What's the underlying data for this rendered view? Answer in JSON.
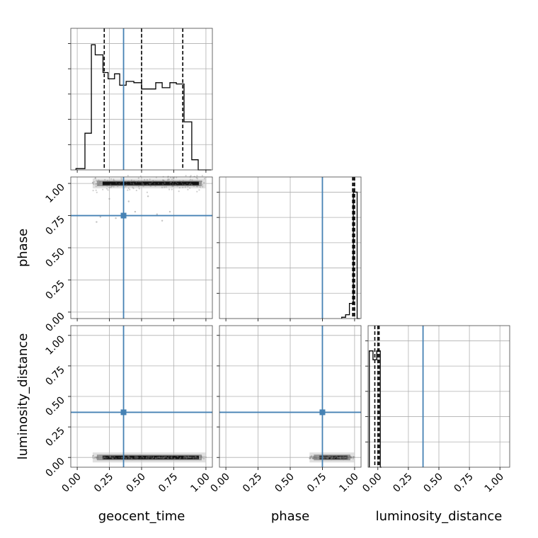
{
  "chart_data": {
    "type": "corner",
    "parameters": [
      "geocent_time",
      "phase",
      "luminosity_distance"
    ],
    "axis_labels": {
      "geocent_time": "geocent_time",
      "phase": "phase",
      "luminosity_distance": "luminosity_distance"
    },
    "ticks": [
      0.0,
      0.25,
      0.5,
      0.75,
      1.0
    ],
    "tick_labels": [
      "0.00",
      "0.25",
      "0.50",
      "0.75",
      "1.00"
    ],
    "grid": true,
    "truths": {
      "geocent_time": 0.36,
      "phase": 0.75,
      "luminosity_distance": 0.37
    },
    "truth_color": "#4682b4",
    "hist_color": "#000000",
    "quantiles": {
      "geocent_time": [
        0.21,
        0.5,
        0.82
      ],
      "phase": [
        0.985,
        0.995,
        1.0
      ],
      "luminosity_distance": [
        -0.025,
        0.0,
        0.01
      ]
    },
    "histograms": {
      "geocent_time": {
        "range": [
          -0.05,
          1.05
        ],
        "edges": [
          -0.01,
          0.06,
          0.11,
          0.14,
          0.2,
          0.24,
          0.29,
          0.33,
          0.38,
          0.44,
          0.5,
          0.55,
          0.61,
          0.66,
          0.72,
          0.77,
          0.83,
          0.89,
          0.94,
          0.99,
          1.04
        ],
        "counts": [
          0.01,
          0.29,
          0.99,
          0.91,
          0.77,
          0.72,
          0.76,
          0.67,
          0.7,
          0.69,
          0.64,
          0.64,
          0.69,
          0.65,
          0.69,
          0.68,
          0.38,
          0.08,
          0.0,
          0.0
        ]
      },
      "phase": {
        "range": [
          -0.05,
          1.05
        ],
        "edges": [
          0.9,
          0.93,
          0.96,
          0.99,
          1.02,
          1.04
        ],
        "counts": [
          0.01,
          0.03,
          0.12,
          1.0,
          0.0
        ]
      },
      "luminosity_distance": {
        "range": [
          -0.08,
          1.08
        ],
        "edges": [
          -0.07,
          -0.04,
          -0.01,
          0.02,
          0.03
        ],
        "counts": [
          0.92,
          0.85,
          0.92,
          0.0
        ]
      }
    },
    "hist_ylim": 1.12,
    "scatter_samples": {
      "geocent_time_vs_phase": {
        "x_range": [
          0.12,
          1.0
        ],
        "y_center": 1.0,
        "y_spread": 0.04,
        "outliers": [
          [
            0.18,
            0.74
          ],
          [
            0.3,
            0.73
          ],
          [
            0.45,
            0.78
          ],
          [
            0.62,
            0.76
          ],
          [
            0.66,
            0.71
          ],
          [
            0.72,
            0.78
          ],
          [
            0.15,
            0.7
          ],
          [
            0.4,
            0.86
          ],
          [
            0.55,
            0.9
          ],
          [
            0.25,
            0.88
          ]
        ]
      },
      "geocent_time_vs_luminosity_distance": {
        "x_range": [
          0.12,
          1.0
        ],
        "y_center": 0.0,
        "y_spread": 0.01
      },
      "phase_vs_luminosity_distance": {
        "x_range": [
          0.65,
          1.0
        ],
        "y_center": 0.0,
        "y_spread": 0.01
      }
    }
  }
}
